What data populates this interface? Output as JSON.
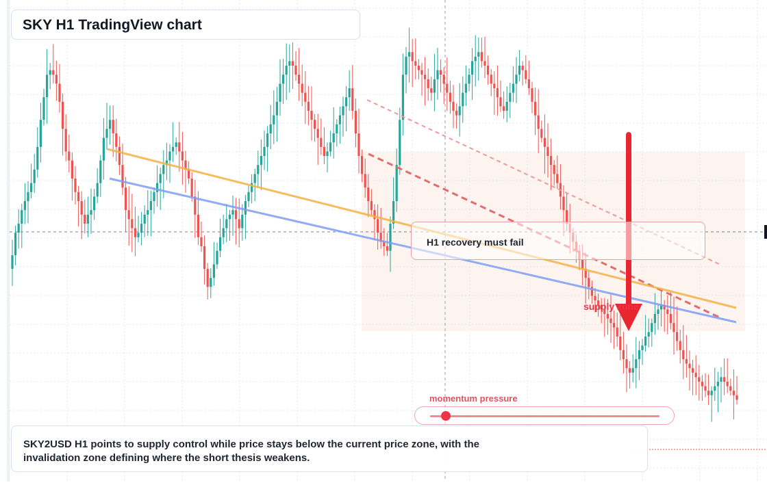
{
  "title": "SKY H1 TradingView chart",
  "recovery_note": "H1 recovery must fail",
  "supply_label": "supply zone",
  "momentum_label": "momentum pressure",
  "momentum_level": 0.07,
  "summary": "SKY2USD H1 points to supply control while price stays below the current price zone, with the invalidation zone defining where the short thesis weakens.",
  "colors": {
    "up": "#26a69a",
    "down": "#ef5350",
    "trend_orange": "#f5b041",
    "trend_blue": "#7f9cf5",
    "bear_line": "#e36b6b",
    "arrow": "#e8262f",
    "zone": "#fdf1ee"
  },
  "chart_data": {
    "type": "candlestick",
    "symbol": "SKY2USD",
    "timeframe": "H1",
    "title": "SKY H1 TradingView chart",
    "grid": true,
    "ylim": [
      0,
      100
    ],
    "closes": [
      48,
      53,
      55,
      58,
      60,
      62,
      64,
      67,
      72,
      78,
      83,
      88,
      89,
      88,
      86,
      82,
      76,
      71,
      69,
      65,
      62,
      60,
      57,
      55,
      57,
      58,
      61,
      64,
      69,
      74,
      76,
      78,
      75,
      72,
      68,
      63,
      58,
      56,
      54,
      52,
      53,
      55,
      57,
      58,
      60,
      62,
      64,
      66,
      68,
      69,
      71,
      72,
      73,
      71,
      69,
      67,
      65,
      61,
      57,
      52,
      50,
      45,
      41,
      43,
      46,
      49,
      52,
      54,
      56,
      57,
      58,
      56,
      54,
      57,
      60,
      62,
      64,
      66,
      68,
      70,
      72,
      75,
      77,
      79,
      82,
      86,
      88,
      90,
      91,
      90,
      88,
      86,
      84,
      82,
      80,
      78,
      76,
      74,
      72,
      70,
      71,
      73,
      75,
      77,
      79,
      81,
      83,
      85,
      80,
      75,
      70,
      66,
      63,
      60,
      58,
      56,
      53,
      51,
      50,
      49,
      55,
      60,
      68,
      78,
      88,
      92,
      93,
      91,
      90,
      89,
      88,
      87,
      85,
      84,
      87,
      89,
      88,
      86,
      84,
      82,
      80,
      79,
      81,
      84,
      86,
      88,
      91,
      92,
      93,
      91,
      90,
      88,
      86,
      85,
      83,
      81,
      80,
      82,
      84,
      86,
      88,
      90,
      89,
      87,
      85,
      82,
      79,
      76,
      74,
      72,
      70,
      68,
      66,
      64,
      61,
      58,
      55,
      53,
      51,
      49,
      47,
      45,
      43,
      41,
      39,
      38,
      37,
      36,
      35,
      34,
      33,
      32,
      30,
      27,
      25,
      23,
      22,
      23,
      25,
      27,
      28,
      30,
      31,
      33,
      35,
      36,
      37,
      36,
      35,
      33,
      31,
      29,
      27,
      25,
      24,
      23,
      22,
      21,
      20,
      19,
      18,
      17,
      18,
      19,
      20,
      21,
      20,
      19,
      18,
      17,
      16
    ]
  }
}
